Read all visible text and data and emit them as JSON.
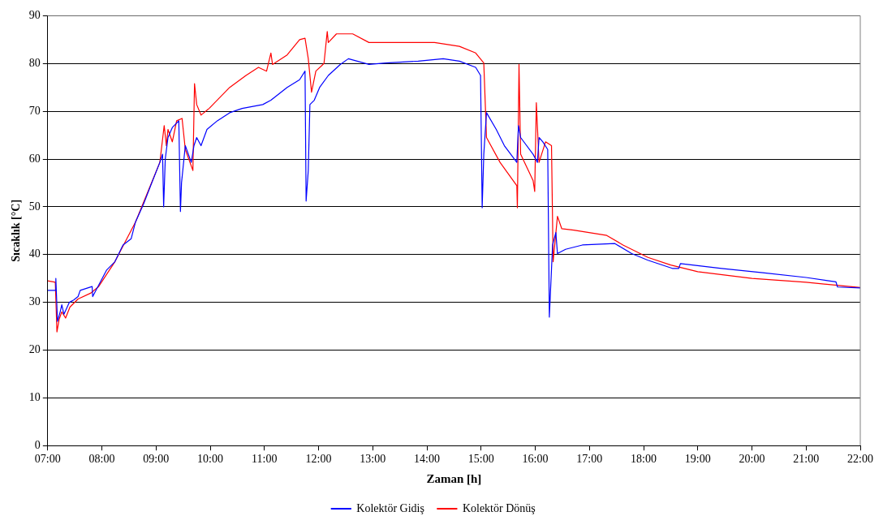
{
  "chart_data": {
    "type": "line",
    "xlabel": "Zaman [h]",
    "ylabel": "Sıcaklık [°C]",
    "xlim": [
      7,
      22
    ],
    "xticks": [
      {
        "value": 7,
        "label": "07:00"
      },
      {
        "value": 8,
        "label": "08:00"
      },
      {
        "value": 9,
        "label": "09:00"
      },
      {
        "value": 10,
        "label": "10:00"
      },
      {
        "value": 11,
        "label": "11:00"
      },
      {
        "value": 12,
        "label": "12:00"
      },
      {
        "value": 13,
        "label": "13:00"
      },
      {
        "value": 14,
        "label": "14:00"
      },
      {
        "value": 15,
        "label": "15:00"
      },
      {
        "value": 16,
        "label": "16:00"
      },
      {
        "value": 17,
        "label": "17:00"
      },
      {
        "value": 18,
        "label": "18:00"
      },
      {
        "value": 19,
        "label": "19:00"
      },
      {
        "value": 20,
        "label": "20:00"
      },
      {
        "value": 21,
        "label": "21:00"
      },
      {
        "value": 22,
        "label": "22:00"
      }
    ],
    "ylim": [
      0,
      90
    ],
    "yticks": [
      0,
      10,
      20,
      30,
      40,
      50,
      60,
      70,
      80,
      90
    ],
    "grid": "y",
    "legend": "bottom",
    "marker": "none",
    "line_style": "solid",
    "series": [
      {
        "name": "Kolektör Gidiş",
        "color": "#0000ff",
        "x": [
          7.0,
          7.14,
          7.15,
          7.18,
          7.23,
          7.26,
          7.3,
          7.4,
          7.48,
          7.56,
          7.6,
          7.82,
          7.83,
          8.09,
          8.24,
          8.39,
          8.54,
          8.62,
          8.77,
          8.92,
          9.07,
          9.12,
          9.14,
          9.17,
          9.22,
          9.3,
          9.42,
          9.45,
          9.47,
          9.54,
          9.65,
          9.7,
          9.75,
          9.83,
          9.94,
          10.13,
          10.36,
          10.59,
          10.97,
          11.12,
          11.42,
          11.65,
          11.75,
          11.77,
          11.81,
          11.84,
          11.92,
          12.02,
          12.18,
          12.4,
          12.55,
          12.93,
          13.24,
          13.84,
          14.3,
          14.6,
          14.9,
          14.99,
          15.02,
          15.05,
          15.1,
          15.28,
          15.43,
          15.66,
          15.69,
          15.73,
          15.96,
          16.04,
          16.07,
          16.14,
          16.23,
          16.26,
          16.32,
          16.38,
          16.41,
          16.56,
          16.87,
          17.47,
          17.78,
          18.08,
          18.53,
          18.65,
          18.68,
          19.44,
          20.2,
          21.0,
          21.55,
          21.58,
          22.0
        ],
        "values": [
          32.5,
          32.5,
          35,
          26,
          28,
          29.5,
          27.5,
          30,
          30.5,
          31.2,
          32.5,
          33.3,
          31.2,
          36.8,
          38.5,
          42,
          43.3,
          46.8,
          50.6,
          55,
          59.3,
          61,
          50,
          60,
          64.5,
          66.6,
          68,
          49,
          55,
          62.8,
          59.3,
          62.8,
          64.5,
          62.8,
          66.2,
          68,
          69.7,
          70.6,
          71.4,
          72.3,
          75,
          76.6,
          78.4,
          51.2,
          57.6,
          71.4,
          72.3,
          75,
          77.5,
          79.8,
          81,
          79.8,
          80.1,
          80.5,
          81,
          80.5,
          79.2,
          77.5,
          49.8,
          61,
          69.7,
          66.2,
          62.8,
          59.3,
          67,
          64.5,
          61,
          59.3,
          64.5,
          63.6,
          62,
          26.9,
          42,
          44.6,
          40.2,
          41.1,
          42,
          42.3,
          40.2,
          38.8,
          37.1,
          37.1,
          38.1,
          37.1,
          36.2,
          35.2,
          34.3,
          33.2,
          33
        ]
      },
      {
        "name": "Kolektör Dönüş",
        "color": "#ff0000",
        "x": [
          7.0,
          7.14,
          7.17,
          7.21,
          7.26,
          7.33,
          7.41,
          7.56,
          7.79,
          7.94,
          8.24,
          8.62,
          9.07,
          9.15,
          9.19,
          9.22,
          9.3,
          9.38,
          9.48,
          9.54,
          9.68,
          9.71,
          9.75,
          9.83,
          9.98,
          10.36,
          10.66,
          10.89,
          11.04,
          11.12,
          11.15,
          11.42,
          11.65,
          11.75,
          11.81,
          11.87,
          11.95,
          12.1,
          12.16,
          12.18,
          12.33,
          12.63,
          12.93,
          13.54,
          14.14,
          14.6,
          14.9,
          15.05,
          15.1,
          15.35,
          15.66,
          15.67,
          15.7,
          15.73,
          15.96,
          15.99,
          16.02,
          16.07,
          16.19,
          16.3,
          16.33,
          16.41,
          16.49,
          16.71,
          17.32,
          17.62,
          18.08,
          18.5,
          19.0,
          20.0,
          21.0,
          22.0
        ],
        "values": [
          34.5,
          34.2,
          23.8,
          26.4,
          28,
          26.7,
          29,
          30.7,
          31.9,
          33.3,
          38.5,
          46.8,
          59.3,
          67,
          62.8,
          66.2,
          63.6,
          68,
          68.5,
          62,
          57.6,
          75.8,
          71.4,
          69.2,
          70.6,
          75,
          77.5,
          79.2,
          78.4,
          82.2,
          79.8,
          81.8,
          85,
          85.3,
          81,
          74,
          78.4,
          80,
          86.7,
          84.4,
          86.2,
          86.2,
          84.4,
          84.4,
          84.4,
          83.6,
          82.2,
          80.1,
          64.5,
          59.3,
          54.4,
          49.8,
          79.8,
          61,
          55.5,
          53.2,
          71.8,
          59.3,
          63.6,
          62.8,
          38.5,
          48,
          45.4,
          45.1,
          44,
          42,
          39.4,
          37.8,
          36.4,
          35,
          34.2,
          33.1
        ]
      }
    ]
  }
}
